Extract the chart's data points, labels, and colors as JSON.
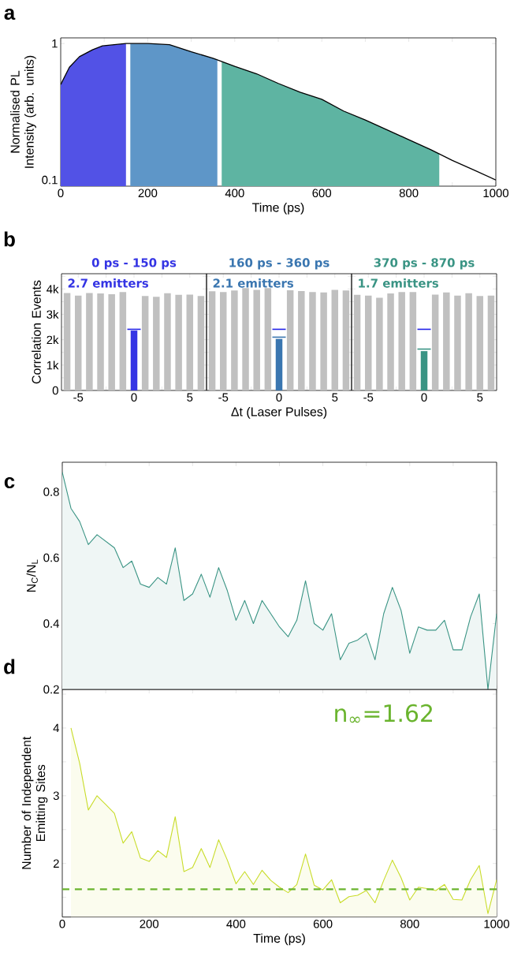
{
  "chart_data": [
    {
      "type": "area",
      "xlabel": "Time (ps)",
      "ylabel": "Normalised PL Intensity (arb. units)",
      "annotations": [
        "a"
      ],
      "log": "y",
      "xlim": [
        0,
        1000
      ],
      "ylim": [
        0.09,
        1.1
      ],
      "xticks": [
        0,
        {
          "value": 100,
          "label": null
        },
        200,
        {
          "value": 300,
          "label": null
        },
        400,
        {
          "value": 500,
          "label": null
        },
        600,
        {
          "value": 700,
          "label": null
        },
        800,
        {
          "value": 900,
          "label": null
        },
        1000
      ],
      "yticks": [
        0.1,
        1
      ],
      "series": [
        {
          "type": "area",
          "color": "#5252e6",
          "x": [
            0,
            20,
            43,
            73,
            96,
            150
          ],
          "values": [
            0.5,
            0.67,
            0.8,
            0.9,
            0.96,
            1.0
          ]
        },
        {
          "type": "area",
          "color": "#5e96c8",
          "x": [
            160,
            200,
            250,
            300,
            350,
            360
          ],
          "values": [
            1.0,
            1.0,
            0.98,
            0.87,
            0.78,
            0.76
          ]
        },
        {
          "type": "area",
          "color": "#5eb4a2",
          "x": [
            370,
            400,
            450,
            500,
            550,
            600,
            650,
            700,
            750,
            800,
            850,
            870
          ],
          "values": [
            0.74,
            0.68,
            0.6,
            0.51,
            0.44,
            0.39,
            0.32,
            0.275,
            0.233,
            0.197,
            0.167,
            0.156
          ]
        },
        {
          "type": "line",
          "color": "#000000",
          "x": [
            0,
            20,
            43,
            73,
            96,
            150,
            200,
            250,
            300,
            350,
            400,
            450,
            500,
            550,
            600,
            650,
            700,
            750,
            800,
            850,
            900,
            950,
            1000
          ],
          "values": [
            0.5,
            0.67,
            0.8,
            0.9,
            0.96,
            1.0,
            1.0,
            0.98,
            0.87,
            0.78,
            0.68,
            0.6,
            0.51,
            0.44,
            0.39,
            0.32,
            0.275,
            0.233,
            0.197,
            0.167,
            0.139,
            0.118,
            0.1
          ]
        }
      ]
    },
    {
      "type": "bar",
      "title": "0 ps - 150 ps",
      "ylabel": "Correlation Events",
      "annotations": [
        "b",
        "2.7 emitters"
      ],
      "xlim": [
        -6.5,
        6.5
      ],
      "ylim": [
        0,
        4600
      ],
      "xticks": [
        -5,
        {
          "value": -2.5,
          "label": null
        },
        0,
        {
          "value": 2.5,
          "label": null
        },
        5
      ],
      "yticks": [
        0,
        {
          "value": 500,
          "label": null
        },
        {
          "value": 1000,
          "label": "1k"
        },
        {
          "value": 1500,
          "label": null
        },
        {
          "value": 2000,
          "label": "2k"
        },
        {
          "value": 2500,
          "label": null
        },
        {
          "value": 3000,
          "label": "3k"
        },
        {
          "value": 3500,
          "label": null
        },
        {
          "value": 4000,
          "label": "4k"
        },
        {
          "value": 4500,
          "label": null
        }
      ],
      "x": [
        -6,
        -5,
        -4,
        -3,
        -2,
        -1,
        0,
        1,
        2,
        3,
        4,
        5,
        6
      ],
      "values": [
        3840,
        3740,
        3840,
        3820,
        3790,
        3880,
        2360,
        3720,
        3690,
        3830,
        3770,
        3780,
        3720
      ],
      "colors": [
        "#c0c0c0",
        "#c0c0c0",
        "#c0c0c0",
        "#c0c0c0",
        "#c0c0c0",
        "#c0c0c0",
        "#3434e4",
        "#c0c0c0",
        "#c0c0c0",
        "#c0c0c0",
        "#c0c0c0",
        "#c0c0c0",
        "#c0c0c0"
      ],
      "ref_lines": [
        {
          "axis": "y",
          "value": 2410,
          "color": "#2020e8"
        }
      ]
    },
    {
      "type": "bar",
      "title": "160 ps - 360 ps",
      "xlabel": "Δt (Laser Pulses)",
      "annotations": [
        "2.1 emitters"
      ],
      "tick_labels": "x",
      "xlim": [
        -6.5,
        6.5
      ],
      "ylim": [
        0,
        4600
      ],
      "xticks": [
        -5,
        {
          "value": -2.5,
          "label": null
        },
        0,
        {
          "value": 2.5,
          "label": null
        },
        5
      ],
      "yticks": [
        {
          "value": 0,
          "label": null
        },
        {
          "value": 500,
          "label": null
        },
        {
          "value": 1000,
          "label": null
        },
        {
          "value": 1500,
          "label": null
        },
        {
          "value": 2000,
          "label": null
        },
        {
          "value": 2500,
          "label": null
        },
        {
          "value": 3000,
          "label": null
        },
        {
          "value": 3500,
          "label": null
        },
        {
          "value": 4000,
          "label": null
        },
        {
          "value": 4500,
          "label": null
        }
      ],
      "x": [
        -6,
        -5,
        -4,
        -3,
        -2,
        -1,
        0,
        1,
        2,
        3,
        4,
        5,
        6
      ],
      "values": [
        3910,
        3880,
        3940,
        4030,
        3960,
        4030,
        2030,
        3950,
        3920,
        3880,
        3860,
        3960,
        3940
      ],
      "colors": [
        "#c0c0c0",
        "#c0c0c0",
        "#c0c0c0",
        "#c0c0c0",
        "#c0c0c0",
        "#c0c0c0",
        "#3a76b0",
        "#c0c0c0",
        "#c0c0c0",
        "#c0c0c0",
        "#c0c0c0",
        "#c0c0c0",
        "#c0c0c0"
      ],
      "ref_lines": [
        {
          "axis": "y",
          "value": 2410,
          "color": "#2020e8"
        },
        {
          "axis": "y",
          "value": 2100,
          "color": "#3a76b0"
        }
      ]
    },
    {
      "type": "bar",
      "title": "370 ps - 870 ps",
      "annotations": [
        "1.7 emitters"
      ],
      "tick_labels": "x",
      "xlim": [
        -6.5,
        6.5
      ],
      "ylim": [
        0,
        4600
      ],
      "xticks": [
        -5,
        {
          "value": -2.5,
          "label": null
        },
        0,
        {
          "value": 2.5,
          "label": null
        },
        5
      ],
      "yticks": [
        {
          "value": 0,
          "label": null
        },
        {
          "value": 500,
          "label": null
        },
        {
          "value": 1000,
          "label": null
        },
        {
          "value": 1500,
          "label": null
        },
        {
          "value": 2000,
          "label": null
        },
        {
          "value": 2500,
          "label": null
        },
        {
          "value": 3000,
          "label": null
        },
        {
          "value": 3500,
          "label": null
        },
        {
          "value": 4000,
          "label": null
        },
        {
          "value": 4500,
          "label": null
        }
      ],
      "x": [
        -6,
        -5,
        -4,
        -3,
        -2,
        -1,
        0,
        1,
        2,
        3,
        4,
        5,
        6
      ],
      "values": [
        3770,
        3740,
        3650,
        3820,
        3880,
        3880,
        1550,
        3780,
        3860,
        3740,
        3830,
        3720,
        3740
      ],
      "colors": [
        "#c0c0c0",
        "#c0c0c0",
        "#c0c0c0",
        "#c0c0c0",
        "#c0c0c0",
        "#c0c0c0",
        "#3a9484",
        "#c0c0c0",
        "#c0c0c0",
        "#c0c0c0",
        "#c0c0c0",
        "#c0c0c0",
        "#c0c0c0"
      ],
      "ref_lines": [
        {
          "axis": "y",
          "value": 2410,
          "color": "#2020e8"
        },
        {
          "axis": "y",
          "value": 1630,
          "color": "#3a9484"
        }
      ]
    },
    {
      "type": "area",
      "ylabel": "N$_{C}$/N$_{L}$",
      "annotations": [
        "c"
      ],
      "tick_labels": "y",
      "xlim": [
        0,
        1000
      ],
      "ylim": [
        0.2,
        0.89
      ],
      "xticks": [
        0,
        {
          "value": 100,
          "label": null
        },
        200,
        {
          "value": 300,
          "label": null
        },
        400,
        {
          "value": 500,
          "label": null
        },
        600,
        {
          "value": 700,
          "label": null
        },
        800,
        {
          "value": 900,
          "label": null
        },
        1000
      ],
      "yticks": [
        0.2,
        {
          "value": 0.3,
          "label": null
        },
        0.4,
        {
          "value": 0.5,
          "label": null
        },
        0.6,
        {
          "value": 0.7,
          "label": null
        },
        0.8
      ],
      "series": [
        {
          "color": "#3a9484",
          "x": [
            0,
            20,
            40,
            60,
            80,
            100,
            120,
            140,
            160,
            180,
            200,
            220,
            240,
            260,
            280,
            300,
            320,
            340,
            360,
            380,
            400,
            420,
            440,
            460,
            480,
            500,
            520,
            540,
            560,
            580,
            600,
            620,
            640,
            660,
            680,
            700,
            720,
            740,
            760,
            780,
            800,
            820,
            840,
            860,
            880,
            900,
            920,
            940,
            960,
            980,
            1000
          ],
          "values": [
            0.86,
            0.75,
            0.71,
            0.64,
            0.67,
            0.65,
            0.63,
            0.57,
            0.59,
            0.52,
            0.51,
            0.54,
            0.52,
            0.63,
            0.47,
            0.49,
            0.55,
            0.48,
            0.57,
            0.5,
            0.41,
            0.47,
            0.4,
            0.47,
            0.43,
            0.39,
            0.36,
            0.41,
            0.53,
            0.4,
            0.38,
            0.43,
            0.29,
            0.34,
            0.35,
            0.37,
            0.29,
            0.43,
            0.51,
            0.44,
            0.31,
            0.39,
            0.38,
            0.38,
            0.41,
            0.32,
            0.32,
            0.42,
            0.49,
            0.2,
            0.43
          ]
        }
      ]
    },
    {
      "type": "area",
      "xlabel": "Time (ps)",
      "ylabel": "Number of Independent Emitting Sites",
      "annotations": [
        "d",
        "n$_{∞}$=1.62"
      ],
      "xlim": [
        0,
        1000
      ],
      "ylim": [
        1.21,
        4.57
      ],
      "xticks": [
        0,
        {
          "value": 100,
          "label": null
        },
        200,
        {
          "value": 300,
          "label": null
        },
        400,
        {
          "value": 500,
          "label": null
        },
        600,
        {
          "value": 700,
          "label": null
        },
        800,
        {
          "value": 900,
          "label": null
        },
        1000
      ],
      "yticks": [
        {
          "value": 1.5,
          "label": null
        },
        2,
        {
          "value": 2.5,
          "label": null
        },
        3,
        {
          "value": 3.5,
          "label": null
        },
        4,
        {
          "value": 4.5,
          "label": null
        }
      ],
      "ref_lines": [
        {
          "axis": "y",
          "value": 1.62,
          "color": "#6ab42e",
          "line_style": "dashed"
        }
      ],
      "series": [
        {
          "color": "#c8dc28",
          "x": [
            20,
            40,
            60,
            80,
            100,
            120,
            140,
            160,
            180,
            200,
            220,
            240,
            260,
            280,
            300,
            320,
            340,
            360,
            380,
            400,
            420,
            440,
            460,
            480,
            500,
            520,
            540,
            560,
            580,
            600,
            620,
            640,
            660,
            680,
            700,
            720,
            740,
            760,
            780,
            800,
            820,
            840,
            860,
            880,
            900,
            920,
            940,
            960,
            980,
            1000
          ],
          "values": [
            4.0,
            3.48,
            2.79,
            3.0,
            2.87,
            2.74,
            2.3,
            2.47,
            2.08,
            2.03,
            2.19,
            2.09,
            2.69,
            1.88,
            1.94,
            2.22,
            1.94,
            2.35,
            2.05,
            1.7,
            1.88,
            1.69,
            1.9,
            1.75,
            1.65,
            1.57,
            1.69,
            2.14,
            1.68,
            1.61,
            1.76,
            1.42,
            1.51,
            1.53,
            1.6,
            1.42,
            1.75,
            2.05,
            1.79,
            1.46,
            1.65,
            1.63,
            1.6,
            1.69,
            1.47,
            1.46,
            1.76,
            1.97,
            1.26,
            1.76
          ]
        }
      ]
    }
  ]
}
